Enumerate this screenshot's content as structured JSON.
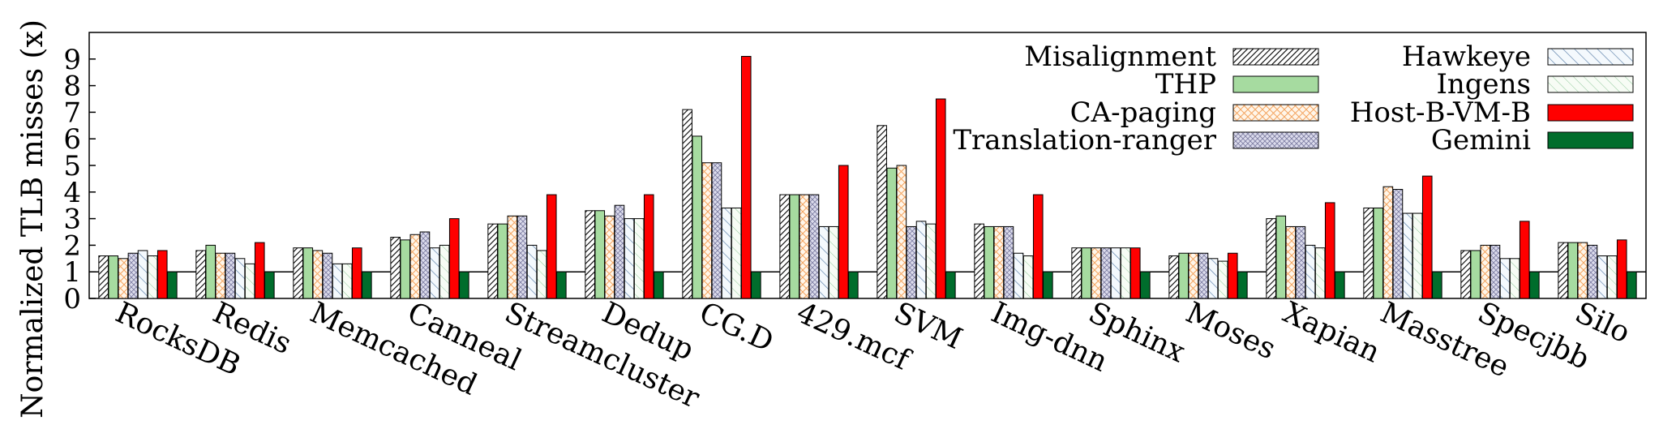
{
  "chart_data": {
    "type": "bar",
    "ylabel": "Normalized TLB misses (x)",
    "xlabel": "",
    "ylim": [
      0,
      10
    ],
    "yticks": [
      "0",
      "1",
      "2",
      "3",
      "4",
      "5",
      "6",
      "7",
      "8",
      "9"
    ],
    "reference_line": 1,
    "legend_position": "top-right",
    "categories": [
      "RocksDB",
      "Redis",
      "Memcached",
      "Canneal",
      "Streamcluster",
      "Dedup",
      "CG.D",
      "429.mcf",
      "SVM",
      "Img-dnn",
      "Sphinx",
      "Moses",
      "Xapian",
      "Masstree",
      "Specjbb",
      "Silo"
    ],
    "series": [
      {
        "name": "Misalignment",
        "color": "#ffffff",
        "pattern": "dense-diagonal",
        "values": [
          1.6,
          1.8,
          1.9,
          2.3,
          2.8,
          3.3,
          7.1,
          3.9,
          6.5,
          2.8,
          1.9,
          1.6,
          3.0,
          3.4,
          1.8,
          2.1
        ]
      },
      {
        "name": "THP",
        "color": "#a6dba0",
        "pattern": "solid",
        "values": [
          1.6,
          2.0,
          1.9,
          2.2,
          2.8,
          3.3,
          6.1,
          3.9,
          4.9,
          2.7,
          1.9,
          1.7,
          3.1,
          3.4,
          1.8,
          2.1
        ]
      },
      {
        "name": "CA-paging",
        "color": "#fdd0a2",
        "pattern": "crosshatch",
        "values": [
          1.5,
          1.7,
          1.8,
          2.4,
          3.1,
          3.1,
          5.1,
          3.9,
          5.0,
          2.7,
          1.9,
          1.7,
          2.7,
          4.2,
          2.0,
          2.1
        ]
      },
      {
        "name": "Translation-ranger",
        "color": "#dadaeb",
        "pattern": "dots",
        "values": [
          1.7,
          1.7,
          1.7,
          2.5,
          3.1,
          3.5,
          5.1,
          3.9,
          2.7,
          2.7,
          1.9,
          1.7,
          2.7,
          4.1,
          2.0,
          2.0
        ]
      },
      {
        "name": "Hawkeye",
        "color": "#deebf7",
        "pattern": "sparse-diagonal",
        "values": [
          1.8,
          1.5,
          1.3,
          1.9,
          2.0,
          3.0,
          3.4,
          2.7,
          2.9,
          1.7,
          1.9,
          1.5,
          2.0,
          3.2,
          1.5,
          1.6
        ]
      },
      {
        "name": "Ingens",
        "color": "#e5f5e0",
        "pattern": "light-diagonal",
        "values": [
          1.6,
          1.3,
          1.3,
          2.0,
          1.8,
          3.0,
          3.4,
          2.7,
          2.8,
          1.6,
          1.9,
          1.4,
          1.9,
          3.2,
          1.5,
          1.6
        ]
      },
      {
        "name": "Host-B-VM-B",
        "color": "#ff0000",
        "pattern": "solid",
        "values": [
          1.8,
          2.1,
          1.9,
          3.0,
          3.9,
          3.9,
          9.1,
          5.0,
          7.5,
          3.9,
          1.9,
          1.7,
          3.6,
          4.6,
          2.9,
          2.2
        ]
      },
      {
        "name": "Gemini",
        "color": "#006d2c",
        "pattern": "solid",
        "values": [
          1.0,
          1.0,
          1.0,
          1.0,
          1.0,
          1.0,
          1.0,
          1.0,
          1.0,
          1.0,
          1.0,
          1.0,
          1.0,
          1.0,
          1.0,
          1.0
        ]
      }
    ]
  }
}
